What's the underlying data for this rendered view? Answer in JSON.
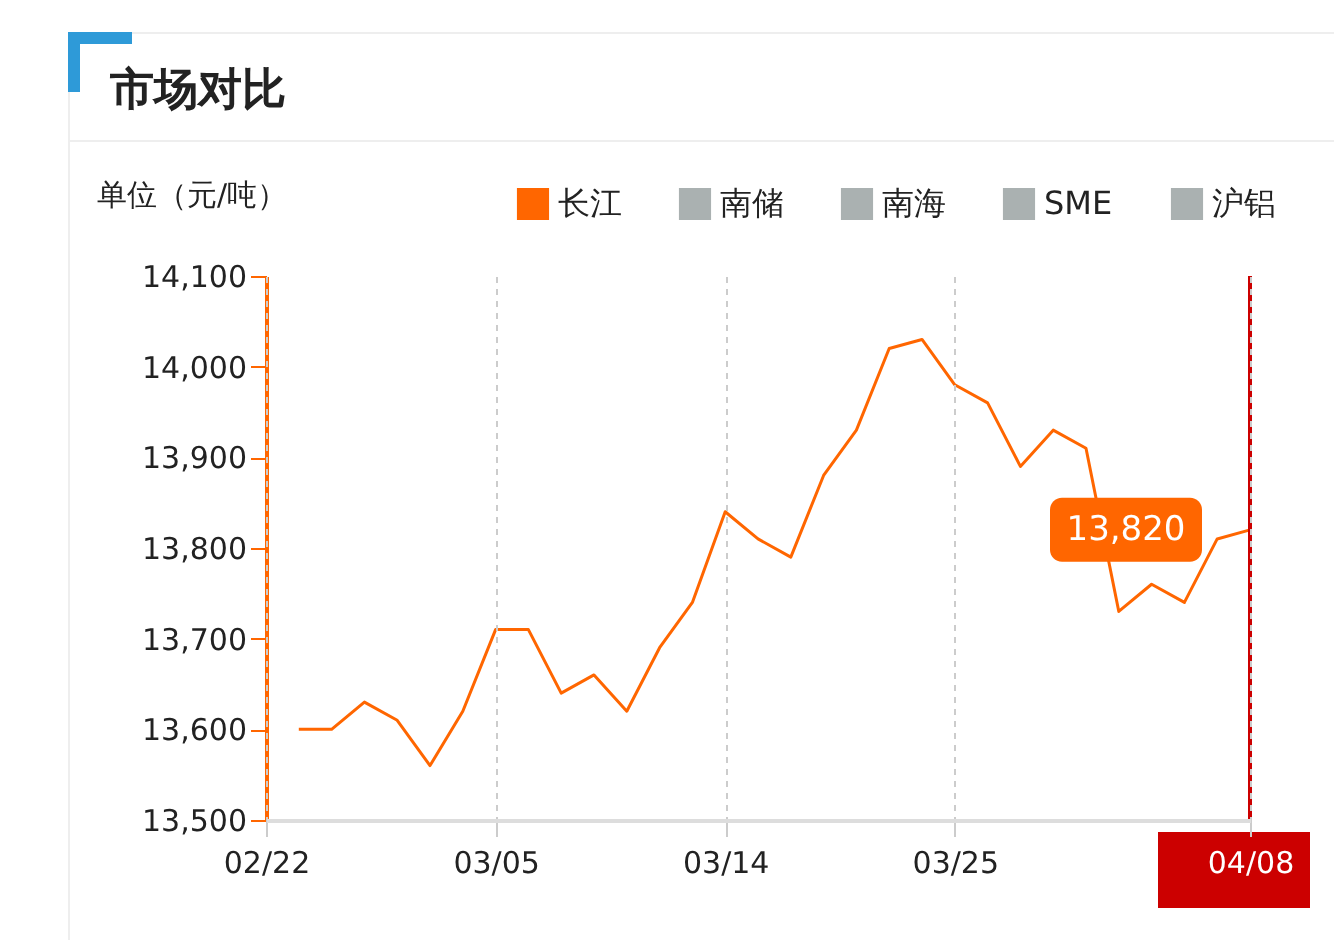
{
  "chart_data": {
    "type": "line",
    "title": "市场对比",
    "ylabel": "单位（元/吨）",
    "categories": [
      "02/22",
      null,
      null,
      null,
      null,
      null,
      null,
      "03/05",
      null,
      null,
      null,
      null,
      null,
      null,
      "03/14",
      null,
      null,
      null,
      null,
      null,
      null,
      "03/25",
      null,
      null,
      null,
      null,
      null,
      null,
      null,
      null,
      "04/08"
    ],
    "series": [
      {
        "name": "长江",
        "color": "#ff6600",
        "values": [
          null,
          13600,
          13600,
          13630,
          13610,
          13560,
          13620,
          13710,
          13710,
          13640,
          13660,
          13620,
          13690,
          13740,
          13840,
          13810,
          13790,
          13880,
          13930,
          14020,
          14030,
          13980,
          13960,
          13890,
          13930,
          13910,
          13730,
          13760,
          13740,
          13810,
          13820
        ]
      },
      {
        "name": "南储",
        "color": "#aab1b1",
        "values": [
          null,
          null,
          null,
          null,
          null,
          null,
          null,
          null,
          null,
          null,
          null,
          null,
          null,
          null,
          null,
          null,
          null,
          null,
          null,
          null,
          null,
          null,
          null,
          null,
          null,
          null,
          null,
          null,
          null,
          null,
          null
        ]
      },
      {
        "name": "南海",
        "color": "#aab1b1",
        "values": [
          null,
          null,
          null,
          null,
          null,
          null,
          null,
          null,
          null,
          null,
          null,
          null,
          null,
          null,
          null,
          null,
          null,
          null,
          null,
          null,
          null,
          null,
          null,
          null,
          null,
          null,
          null,
          null,
          null,
          null,
          null
        ]
      },
      {
        "name": "SME",
        "color": "#aab1b1",
        "values": [
          null,
          null,
          null,
          null,
          null,
          null,
          null,
          null,
          null,
          null,
          null,
          null,
          null,
          null,
          null,
          null,
          null,
          null,
          null,
          null,
          null,
          null,
          null,
          null,
          null,
          null,
          null,
          null,
          null,
          null,
          null
        ]
      },
      {
        "name": "沪铝",
        "color": "#aab1b1",
        "values": [
          null,
          null,
          null,
          null,
          null,
          null,
          null,
          null,
          null,
          null,
          null,
          null,
          null,
          null,
          null,
          null,
          null,
          null,
          null,
          null,
          null,
          null,
          null,
          null,
          null,
          null,
          null,
          null,
          null,
          null,
          null
        ]
      }
    ],
    "ylim": [
      13500,
      14100
    ],
    "yticks": [
      {
        "value": 13500,
        "label": "13,500"
      },
      {
        "value": 13600,
        "label": "13,600"
      },
      {
        "value": 13700,
        "label": "13,700"
      },
      {
        "value": 13800,
        "label": "13,800"
      },
      {
        "value": 13900,
        "label": "13,900"
      },
      {
        "value": 14000,
        "label": "14,000"
      },
      {
        "value": 14100,
        "label": "14,100"
      }
    ],
    "grid": "x",
    "legend": "top",
    "ref_lines": [
      {
        "axis": "x",
        "value": "04/08",
        "color": "#cc0000"
      }
    ],
    "annotations": [
      {
        "text": "13,820",
        "x": "04/08",
        "y": 13820
      }
    ]
  }
}
